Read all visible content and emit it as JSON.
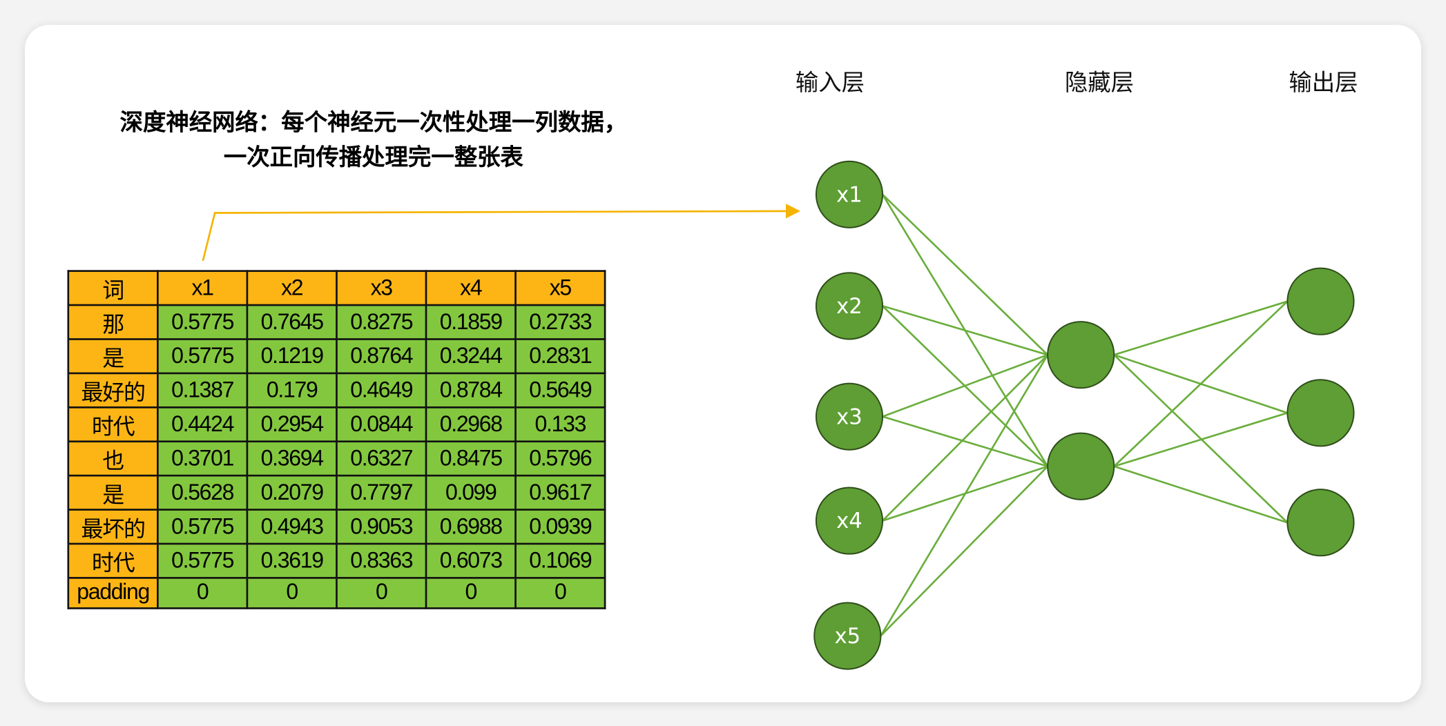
{
  "title": {
    "line1": "深度神经网络：每个神经元一次性处理一列数据，",
    "line2": "一次正向传播处理完一整张表"
  },
  "layers": {
    "input": "输入层",
    "hidden": "隐藏层",
    "output": "输出层"
  },
  "input_nodes": [
    "x1",
    "x2",
    "x3",
    "x4",
    "x5"
  ],
  "hidden_node_count": 2,
  "output_node_count": 3,
  "colors": {
    "header": "#FDB515",
    "cell": "#83C73F",
    "node": "#5E9E34",
    "edge": "#6AAE3C",
    "arrow": "#F5B400"
  },
  "table": {
    "headers": [
      "词",
      "x1",
      "x2",
      "x3",
      "x4",
      "x5"
    ],
    "rows": [
      [
        "那",
        "0.5775",
        "0.7645",
        "0.8275",
        "0.1859",
        "0.2733"
      ],
      [
        "是",
        "0.5775",
        "0.1219",
        "0.8764",
        "0.3244",
        "0.2831"
      ],
      [
        "最好的",
        "0.1387",
        "0.179",
        "0.4649",
        "0.8784",
        "0.5649"
      ],
      [
        "时代",
        "0.4424",
        "0.2954",
        "0.0844",
        "0.2968",
        "0.133"
      ],
      [
        "也",
        "0.3701",
        "0.3694",
        "0.6327",
        "0.8475",
        "0.5796"
      ],
      [
        "是",
        "0.5628",
        "0.2079",
        "0.7797",
        "0.099",
        "0.9617"
      ],
      [
        "最坏的",
        "0.5775",
        "0.4943",
        "0.9053",
        "0.6988",
        "0.0939"
      ],
      [
        "时代",
        "0.5775",
        "0.3619",
        "0.8363",
        "0.6073",
        "0.1069"
      ],
      [
        "padding",
        "0",
        "0",
        "0",
        "0",
        "0"
      ]
    ]
  }
}
